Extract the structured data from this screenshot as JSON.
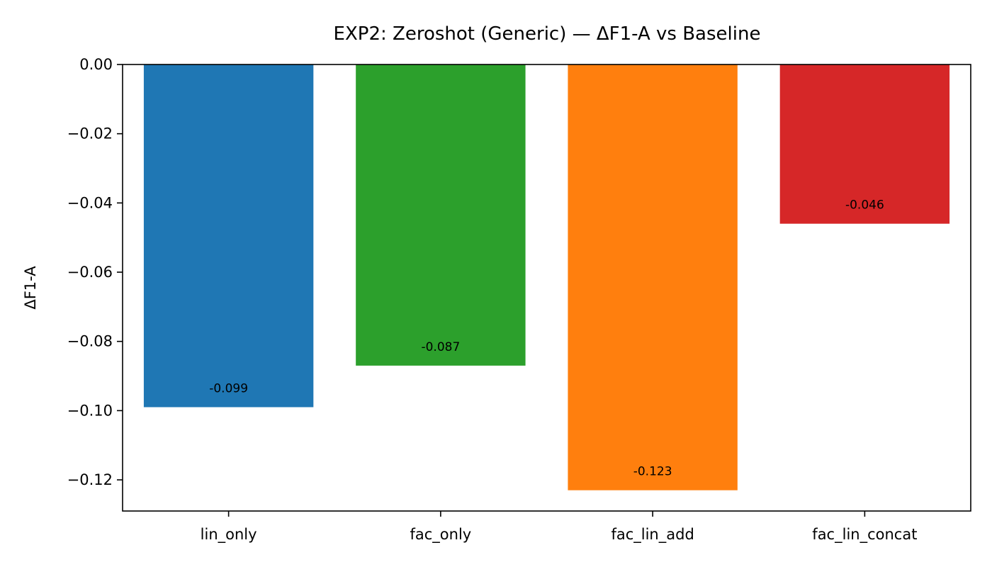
{
  "chart_data": {
    "type": "bar",
    "title": "EXP2: Zeroshot (Generic) — ΔF1-A vs Baseline",
    "xlabel": "",
    "ylabel": "ΔF1-A",
    "categories": [
      "lin_only",
      "fac_only",
      "fac_lin_add",
      "fac_lin_concat"
    ],
    "values": [
      -0.099,
      -0.087,
      -0.123,
      -0.046
    ],
    "data_labels": [
      "-0.099",
      "-0.087",
      "-0.123",
      "-0.046"
    ],
    "colors": [
      "#1f77b4",
      "#2ca02c",
      "#ff7f0e",
      "#d62728"
    ],
    "ylim": [
      -0.129,
      0.0
    ],
    "yticks": [
      0.0,
      -0.02,
      -0.04,
      -0.06,
      -0.08,
      -0.1,
      -0.12
    ],
    "ytick_labels": [
      "0.00",
      "−0.02",
      "−0.04",
      "−0.06",
      "−0.08",
      "−0.10",
      "−0.12"
    ],
    "grid": false,
    "legend": "none"
  }
}
